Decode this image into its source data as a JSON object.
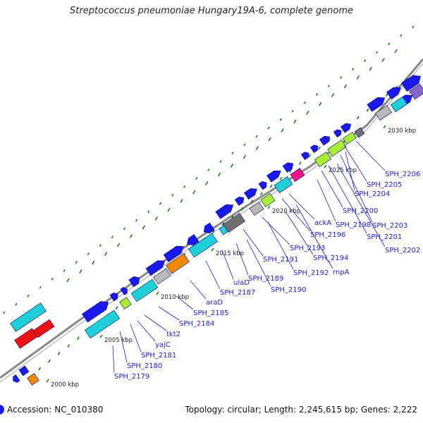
{
  "title": "Streptococcus pneumoniae Hungary19A-6, complete genome",
  "footer": {
    "accession": "Accession: NC_010380",
    "topology": "Topology: circular; Length: 2,245,615 bp; Genes: 2,222"
  },
  "kbp_labels": [
    "2000 kbp",
    "2005 kbp",
    "2010 kbp",
    "2015 kbp",
    "2020 kbp",
    "2025 kbp",
    "2030 kbp"
  ],
  "gene_labels": [
    "SPH_2179",
    "SPH_2180",
    "SPH_2181",
    "yajC",
    "tkt2",
    "SPH_2184",
    "SPH_2185",
    "araD",
    "SPH_2187",
    "ulaD",
    "SPH_2189",
    "SPH_2190",
    "SPH_2191",
    "SPH_2192",
    "SPH_2193",
    "SPH_2194",
    "rnpA",
    "SPH_2196",
    "ackA",
    "SPH_2198",
    "SPH_2200",
    "SPH_2201",
    "SPH_2202",
    "SPH_2203",
    "SPH_2204",
    "SPH_2205",
    "SPH_2206"
  ],
  "colors": {
    "gene_blue": "#1a1aee",
    "gene_cyan": "#20d0d8",
    "gene_red": "#ee1111",
    "gene_orange": "#f08a00",
    "gene_grey": "#b8b8b8",
    "gene_darkgrey": "#707070",
    "gene_green": "#aaee33",
    "gene_pink": "#ee1188",
    "gene_purple": "#8866cc",
    "backbone": "#888888",
    "tick": "#1a7a1a"
  }
}
